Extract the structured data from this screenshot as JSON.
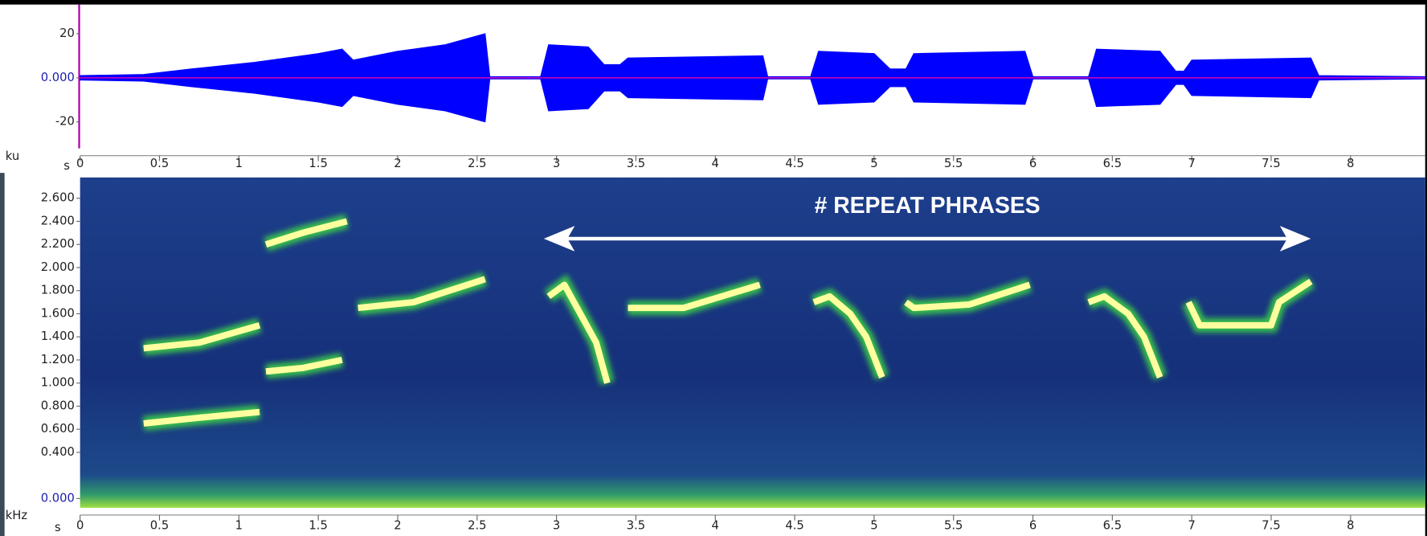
{
  "chart_data": [
    {
      "type": "waveform",
      "y_label": "ku",
      "x_label": "s",
      "color": "#0000ff",
      "xlim": [
        0,
        8.47
      ],
      "xticks": [
        0,
        0.5,
        1,
        1.5,
        2,
        2.5,
        3,
        3.5,
        4,
        4.5,
        5,
        5.5,
        6,
        6.5,
        7,
        7.5,
        8
      ],
      "ylim": [
        -32,
        32
      ],
      "yticks": [
        20,
        {
          "value": 0,
          "label": "0.000"
        },
        -20
      ],
      "x": [
        0,
        0.4,
        0.7,
        1.1,
        1.5,
        1.65,
        1.72,
        2.0,
        2.3,
        2.55,
        2.58,
        2.9,
        2.95,
        3.2,
        3.3,
        3.4,
        3.45,
        4.3,
        4.33,
        4.6,
        4.65,
        5.0,
        5.1,
        5.2,
        5.25,
        5.95,
        6.0,
        6.35,
        6.4,
        6.8,
        6.9,
        6.95,
        7.0,
        7.75,
        7.8,
        8.47
      ],
      "values": [
        1,
        1.5,
        4,
        7,
        11,
        13,
        8,
        12,
        15,
        20,
        0.5,
        0.5,
        15,
        14,
        6,
        6,
        9,
        10,
        0.5,
        0.5,
        12,
        11,
        4,
        4,
        11,
        12,
        0.5,
        0.5,
        13,
        12,
        3,
        3,
        8,
        9,
        1,
        0.5
      ]
    },
    {
      "type": "spectrogram",
      "y_label": "kHz",
      "x_label": "s",
      "xlim": [
        0,
        8.47
      ],
      "xticks": [
        0,
        0.5,
        1,
        1.5,
        2,
        2.5,
        3,
        3.5,
        4,
        4.5,
        5,
        5.5,
        6,
        6.5,
        7,
        7.5,
        8
      ],
      "ylim": [
        -0.08,
        2.78
      ],
      "yticks": [
        {
          "value": 0,
          "label": "0.000"
        },
        {
          "value": 0.4,
          "label": "0.400"
        },
        {
          "value": 0.6,
          "label": "0.600"
        },
        {
          "value": 0.8,
          "label": "0.800"
        },
        {
          "value": 1.0,
          "label": "1.000"
        },
        {
          "value": 1.2,
          "label": "1.200"
        },
        {
          "value": 1.4,
          "label": "1.400"
        },
        {
          "value": 1.6,
          "label": "1.600"
        },
        {
          "value": 1.8,
          "label": "1.800"
        },
        {
          "value": 2.0,
          "label": "2.000"
        },
        {
          "value": 2.2,
          "label": "2.200"
        },
        {
          "value": 2.4,
          "label": "2.400"
        },
        {
          "value": 2.6,
          "label": "2.600"
        }
      ],
      "series": [
        {
          "color": "#ffffa0",
          "x": [
            0.4,
            0.75,
            1.13,
            1.15,
            1.17,
            1.4,
            1.65,
            1.7,
            1.75,
            2.1,
            2.55,
            2.6,
            2.95,
            3.05,
            3.15,
            3.25,
            3.32,
            3.4,
            3.45,
            3.8,
            4.28,
            4.3,
            4.62,
            4.72,
            4.85,
            4.95,
            5.05,
            5.1,
            5.2,
            5.25,
            5.6,
            5.98,
            6.0,
            6.35,
            6.45,
            6.6,
            6.7,
            6.8,
            6.9,
            6.98,
            7.05,
            7.5,
            7.55,
            7.75
          ],
          "values": [
            0.65,
            0.7,
            0.75,
            null,
            1.1,
            1.13,
            1.2,
            null,
            1.65,
            1.7,
            1.9,
            null,
            1.75,
            1.85,
            1.6,
            1.35,
            1.0,
            null,
            1.65,
            1.65,
            1.85,
            null,
            1.7,
            1.75,
            1.6,
            1.4,
            1.05,
            null,
            1.7,
            1.65,
            1.68,
            1.85,
            null,
            1.7,
            1.75,
            1.6,
            1.4,
            1.05,
            null,
            1.7,
            1.5,
            1.5,
            1.7,
            1.88
          ]
        },
        {
          "color": "#ffffa0",
          "x": [
            0.4,
            0.75,
            1.13,
            1.15,
            1.17,
            1.4,
            1.68
          ],
          "values": [
            1.3,
            1.35,
            1.5,
            null,
            2.2,
            2.3,
            2.4
          ]
        }
      ],
      "annotation": {
        "text": "# REPEAT PHRASES",
        "x": [
          2.92,
          7.75
        ],
        "y": 2.25
      }
    }
  ]
}
